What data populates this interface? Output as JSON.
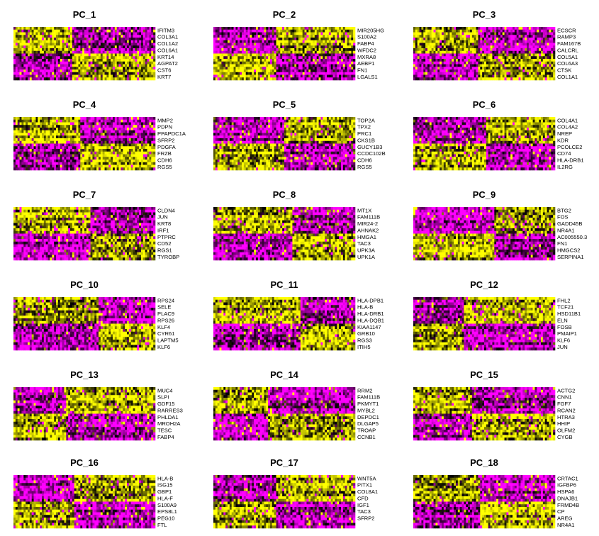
{
  "chart_data": {
    "type": "heatmap",
    "colors": {
      "low": "#ff00ff",
      "mid": "#000000",
      "high": "#ffff00"
    },
    "value_range": [
      -2.5,
      2.5
    ],
    "panels": [
      {
        "title": "PC_1",
        "genes": [
          "IFITM3",
          "COL3A1",
          "COL1A2",
          "COL6A1",
          "KRT14",
          "AGPAT2",
          "CST6",
          "KRT7"
        ]
      },
      {
        "title": "PC_2",
        "genes": [
          "MIR205HG",
          "S100A2",
          "FABP4",
          "WFDC2",
          "MXRA8",
          "AEBP1",
          "FN1",
          "LGALS1"
        ]
      },
      {
        "title": "PC_3",
        "genes": [
          "ECSCR",
          "RAMP3",
          "FAM167B",
          "CALCRL",
          "COL5A1",
          "COL6A3",
          "CTSK",
          "COL1A1"
        ]
      },
      {
        "title": "PC_4",
        "genes": [
          "MMP2",
          "PDPN",
          "PPAPDC1A",
          "SFRP2",
          "PDGFA",
          "FRZB",
          "CDH6",
          "RGS5"
        ]
      },
      {
        "title": "PC_5",
        "genes": [
          "TOP2A",
          "TPX2",
          "PRC1",
          "CKS1B",
          "GUCY1B3",
          "CCDC102B",
          "CDH6",
          "RGS5"
        ]
      },
      {
        "title": "PC_6",
        "genes": [
          "COL4A1",
          "COL4A2",
          "NREP",
          "KDR",
          "PCOLCE2",
          "CD74",
          "HLA-DRB1",
          "IL2RG"
        ]
      },
      {
        "title": "PC_7",
        "genes": [
          "CLDN4",
          "JUN",
          "KRT8",
          "IRF1",
          "PTPRC",
          "CD52",
          "RGS1",
          "TYROBP"
        ]
      },
      {
        "title": "PC_8",
        "genes": [
          "MT1X",
          "FAM111B",
          "MIR24-2",
          "AHNAK2",
          "HMGA1",
          "TAC3",
          "UPK3A",
          "UPK1A"
        ]
      },
      {
        "title": "PC_9",
        "genes": [
          "BTG2",
          "FOS",
          "GADD45B",
          "NR4A1",
          "AC005550.3",
          "FN1",
          "HMGCS2",
          "SERPINA1"
        ]
      },
      {
        "title": "PC_10",
        "genes": [
          "RPS24",
          "SELE",
          "PLAC9",
          "RPS26",
          "KLF4",
          "CYR61",
          "LAPTM5",
          "KLF6"
        ]
      },
      {
        "title": "PC_11",
        "genes": [
          "HLA-DPB1",
          "HLA-B",
          "HLA-DRB1",
          "HLA-DQB1",
          "KIAA1147",
          "GRB10",
          "RGS3",
          "ITIH5"
        ]
      },
      {
        "title": "PC_12",
        "genes": [
          "FHL2",
          "TCF21",
          "HSD11B1",
          "ELN",
          "FOSB",
          "PMAIP1",
          "KLF6",
          "JUN"
        ]
      },
      {
        "title": "PC_13",
        "genes": [
          "MUC4",
          "SLPI",
          "GDF15",
          "RARRES3",
          "PHLDA1",
          "MROH2A",
          "TESC",
          "FABP4"
        ]
      },
      {
        "title": "PC_14",
        "genes": [
          "RRM2",
          "FAM111B",
          "PKMYT1",
          "MYBL2",
          "DEPDC1",
          "DLGAP5",
          "TROAP",
          "CCNB1"
        ]
      },
      {
        "title": "PC_15",
        "genes": [
          "ACTG2",
          "CNN1",
          "FGF7",
          "RCAN2",
          "HTRA3",
          "HHIP",
          "OLFM2",
          "CYGB"
        ]
      },
      {
        "title": "PC_16",
        "genes": [
          "HLA-B",
          "ISG15",
          "GBP1",
          "HLA-F",
          "S100A9",
          "EPS8L1",
          "PEG10",
          "FTL"
        ]
      },
      {
        "title": "PC_17",
        "genes": [
          "WNT5A",
          "PITX1",
          "COL8A1",
          "CFD",
          "IGF1",
          "TAC3",
          "SFRP2"
        ]
      },
      {
        "title": "PC_18",
        "genes": [
          "CRTAC1",
          "IGFBP6",
          "HSPA6",
          "DNAJB1",
          "FRMD4B",
          "CP",
          "AREG",
          "NR4A1"
        ]
      }
    ]
  }
}
